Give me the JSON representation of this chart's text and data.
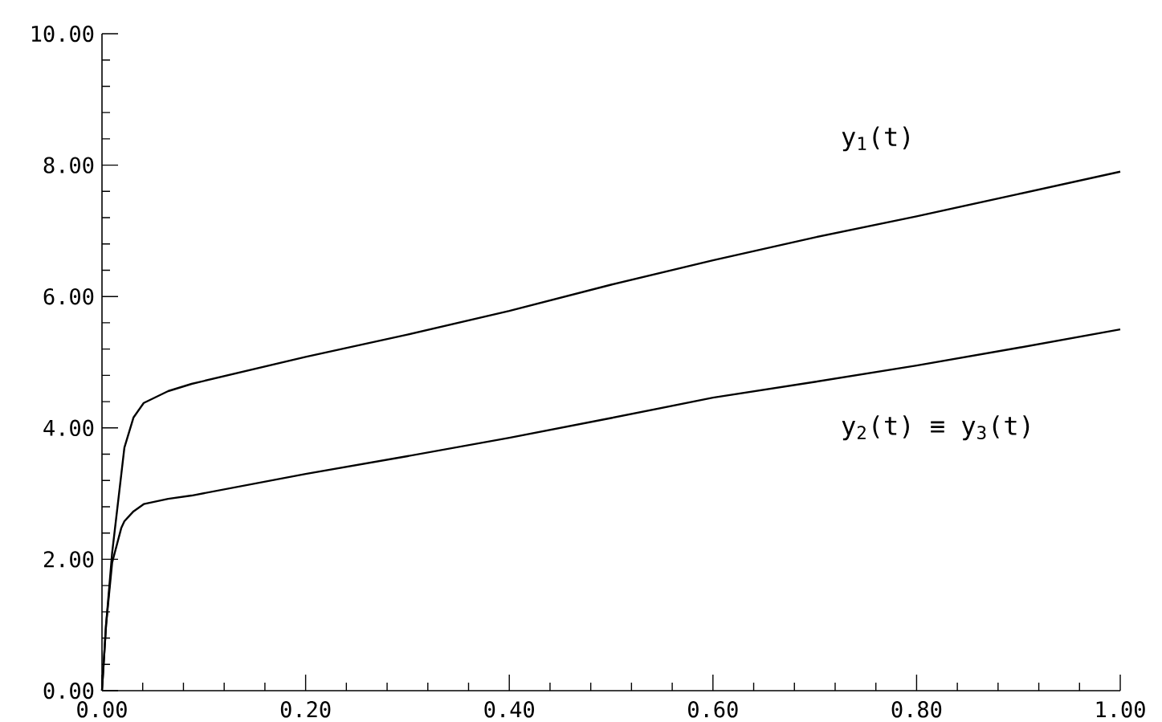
{
  "chart_data": {
    "type": "line",
    "x": [
      0,
      0.004,
      0.01,
      0.019,
      0.022,
      0.031,
      0.041,
      0.065,
      0.088,
      0.2,
      0.3,
      0.4,
      0.5,
      0.6,
      0.7,
      0.8,
      0.9,
      1.0
    ],
    "series": [
      {
        "name": "y$_{1}$(t)",
        "color": "#000000",
        "values": [
          0,
          1.0,
          2.1,
          3.3,
          3.7,
          4.16,
          4.38,
          4.56,
          4.67,
          5.08,
          5.42,
          5.78,
          6.18,
          6.55,
          6.9,
          7.22,
          7.56,
          7.9
        ]
      },
      {
        "name": "y$_{2}$(t) ≡ y$_{3}$(t)",
        "color": "#000000",
        "values": [
          0,
          1.0,
          1.95,
          2.48,
          2.58,
          2.73,
          2.84,
          2.92,
          2.97,
          3.3,
          3.57,
          3.85,
          4.15,
          4.46,
          4.7,
          4.95,
          5.22,
          5.5
        ]
      }
    ],
    "xlim": [
      0,
      1.0
    ],
    "ylim": [
      0,
      10
    ],
    "xticks": [
      {
        "value": 0,
        "label": "0.00"
      },
      {
        "value": 0.2,
        "label": "0.20"
      },
      {
        "value": 0.4,
        "label": "0.40"
      },
      {
        "value": 0.6,
        "label": "0.60"
      },
      {
        "value": 0.8,
        "label": "0.80"
      },
      {
        "value": 1.0,
        "label": "1.00"
      }
    ],
    "yticks": [
      {
        "value": 0,
        "label": "0.00"
      },
      {
        "value": 2,
        "label": "2.00"
      },
      {
        "value": 4,
        "label": "4.00"
      },
      {
        "value": 6,
        "label": "6.00"
      },
      {
        "value": 8,
        "label": "8.00"
      },
      {
        "value": 10,
        "label": "10.00"
      }
    ],
    "grid": false,
    "legend": false,
    "marker": "none",
    "line_style": "solid"
  }
}
